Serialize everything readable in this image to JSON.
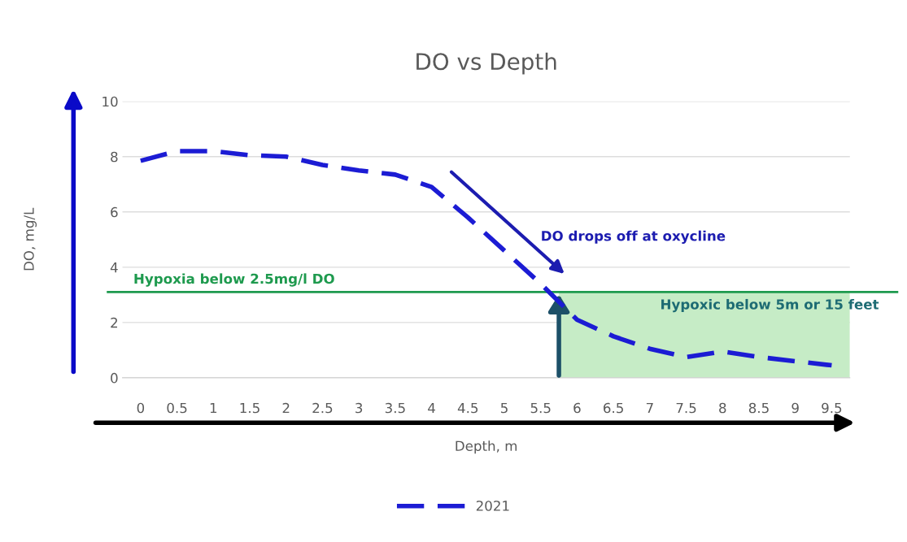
{
  "chart_data": {
    "type": "line",
    "title": "DO vs Depth",
    "xlabel": "Depth, m",
    "ylabel": "DO, mg/L",
    "categories": [
      "0",
      "0.5",
      "1",
      "1.5",
      "2",
      "2.5",
      "3",
      "3.5",
      "4",
      "4.5",
      "5",
      "5.5",
      "6",
      "6.5",
      "7",
      "7.5",
      "8",
      "8.5",
      "9",
      "9.5"
    ],
    "series": [
      {
        "name": "2021",
        "color": "#1c1cd4",
        "values": [
          7.85,
          8.2,
          8.2,
          8.05,
          8.0,
          7.7,
          7.5,
          7.35,
          6.9,
          5.8,
          4.6,
          3.4,
          2.1,
          1.5,
          1.05,
          0.75,
          0.95,
          0.75,
          0.6,
          0.45
        ]
      }
    ],
    "ylim": [
      0,
      10
    ],
    "yticks": [
      0,
      2,
      4,
      6,
      8,
      10
    ],
    "grid": "y",
    "legend": "bottom",
    "line_style": "dashed",
    "marker": "none",
    "ref_lines": [
      {
        "axis": "y",
        "value": 3.1,
        "label": "Hypoxia below 2.5mg/l DO",
        "color": "#1e9a4e"
      }
    ],
    "bands": [
      {
        "axis": "x",
        "from": "6",
        "to": "9.5",
        "label": "Hypoxic below 5m or 15 feet",
        "color": "#c6ecc6"
      }
    ],
    "annotations": [
      {
        "text": "DO drops off at oxycline",
        "x": "5.5",
        "y": 3.7
      }
    ]
  }
}
